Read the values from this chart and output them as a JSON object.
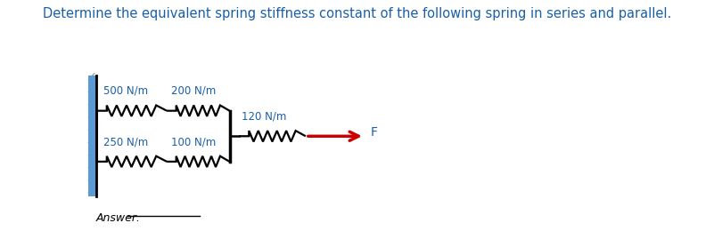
{
  "title": "Determine the equivalent spring stiffness constant of the following spring in series and parallel.",
  "title_color": "#1a5fa8",
  "title_fontsize": 10.5,
  "wall_color": "#5b9bd5",
  "label_color": "#1a5fa8",
  "line_color": "#000000",
  "spring_color": "#000000",
  "arrow_color": "#cc0000",
  "background_color": "#ffffff",
  "top_spring_labels": [
    "500 N/m",
    "200 N/m"
  ],
  "bottom_spring_labels": [
    "250 N/m",
    "100 N/m"
  ],
  "series_spring_label": "120 N/m",
  "force_label": "F",
  "answer_text": "Answer:"
}
